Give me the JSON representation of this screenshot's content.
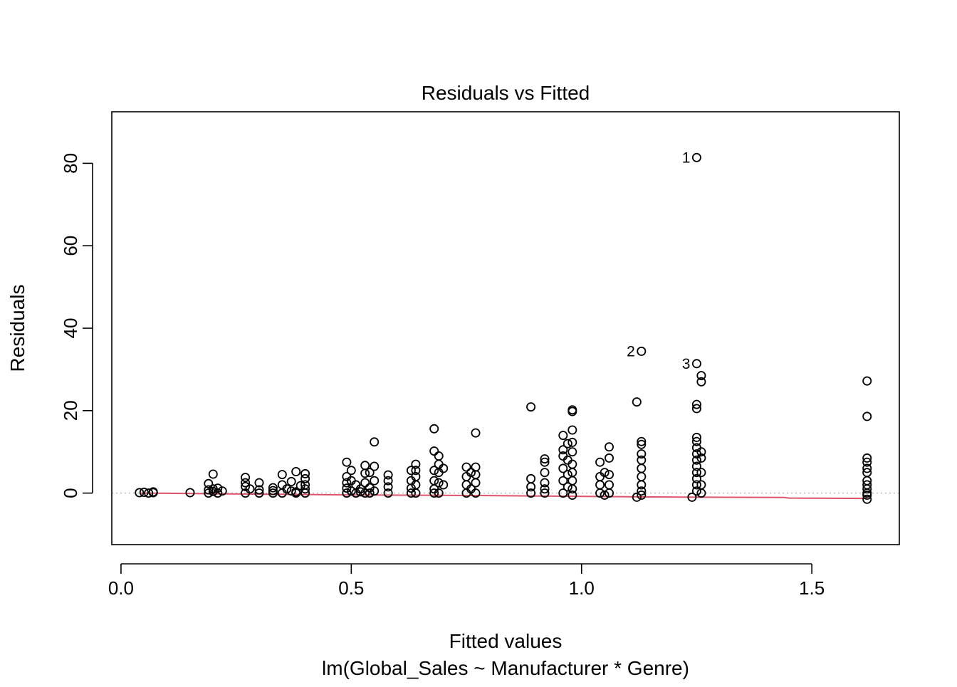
{
  "chart_data": {
    "type": "scatter",
    "title": "Residuals vs Fitted",
    "xlabel": "Fitted values",
    "subtitle": "lm(Global_Sales ~ Manufacturer * Genre)",
    "ylabel": "Residuals",
    "xlim": [
      -0.02,
      1.69
    ],
    "ylim": [
      -12.5,
      92.5
    ],
    "x_ticks": [
      "0.0",
      "0.5",
      "1.0",
      "1.5"
    ],
    "x_tick_values": [
      0.0,
      0.5,
      1.0,
      1.5
    ],
    "y_ticks": [
      "0",
      "20",
      "40",
      "60",
      "80"
    ],
    "y_tick_values": [
      0,
      20,
      40,
      60,
      80
    ],
    "grid": false,
    "zero_reference_line": true,
    "colors": {
      "points": "#000000",
      "smooth_line": "#DF536B",
      "reference_line": "#BEBEBE"
    },
    "annotations": [
      {
        "label": "1",
        "x": 1.25,
        "y": 81.4
      },
      {
        "label": "2",
        "x": 1.13,
        "y": 34.4
      },
      {
        "label": "3",
        "x": 1.25,
        "y": 31.4
      }
    ],
    "series": [
      {
        "points": [
          [
            0.04,
            0.1
          ],
          [
            0.05,
            0.2
          ],
          [
            0.06,
            0.0
          ],
          [
            0.07,
            0.3
          ],
          [
            0.07,
            0.1
          ],
          [
            0.15,
            0.1
          ],
          [
            0.19,
            0.0
          ],
          [
            0.19,
            2.3
          ],
          [
            0.2,
            4.6
          ],
          [
            0.2,
            1.0
          ],
          [
            0.21,
            0.0
          ],
          [
            0.2,
            0.4
          ],
          [
            0.21,
            1.2
          ],
          [
            0.22,
            0.5
          ],
          [
            0.19,
            0.8
          ],
          [
            0.27,
            0.0
          ],
          [
            0.27,
            3.8
          ],
          [
            0.27,
            2.5
          ],
          [
            0.28,
            1.0
          ],
          [
            0.27,
            1.6
          ],
          [
            0.3,
            2.5
          ],
          [
            0.3,
            0.0
          ],
          [
            0.3,
            0.8
          ],
          [
            0.33,
            0.0
          ],
          [
            0.33,
            1.3
          ],
          [
            0.33,
            0.6
          ],
          [
            0.35,
            0.0
          ],
          [
            0.35,
            4.5
          ],
          [
            0.35,
            2.0
          ],
          [
            0.36,
            1.0
          ],
          [
            0.37,
            0.5
          ],
          [
            0.37,
            2.8
          ],
          [
            0.38,
            5.2
          ],
          [
            0.38,
            0.3
          ],
          [
            0.39,
            1.8
          ],
          [
            0.38,
            0.0
          ],
          [
            0.4,
            0.0
          ],
          [
            0.4,
            4.7
          ],
          [
            0.4,
            3.5
          ],
          [
            0.4,
            2.0
          ],
          [
            0.4,
            1.0
          ],
          [
            0.49,
            0.0
          ],
          [
            0.49,
            7.5
          ],
          [
            0.49,
            4.0
          ],
          [
            0.49,
            2.5
          ],
          [
            0.49,
            1.2
          ],
          [
            0.5,
            5.5
          ],
          [
            0.5,
            3.0
          ],
          [
            0.5,
            0.5
          ],
          [
            0.51,
            0.0
          ],
          [
            0.51,
            2.0
          ],
          [
            0.52,
            1.0
          ],
          [
            0.52,
            0.3
          ],
          [
            0.53,
            6.7
          ],
          [
            0.53,
            4.8
          ],
          [
            0.53,
            2.5
          ],
          [
            0.54,
            5.0
          ],
          [
            0.54,
            1.3
          ],
          [
            0.54,
            0.0
          ],
          [
            0.55,
            12.4
          ],
          [
            0.55,
            6.5
          ],
          [
            0.55,
            3.0
          ],
          [
            0.55,
            0.5
          ],
          [
            0.53,
            0.0
          ],
          [
            0.58,
            4.4
          ],
          [
            0.58,
            3.0
          ],
          [
            0.58,
            1.5
          ],
          [
            0.58,
            0.0
          ],
          [
            0.63,
            0.0
          ],
          [
            0.63,
            5.5
          ],
          [
            0.63,
            3.0
          ],
          [
            0.64,
            7.0
          ],
          [
            0.64,
            5.5
          ],
          [
            0.64,
            4.0
          ],
          [
            0.64,
            2.0
          ],
          [
            0.64,
            0.0
          ],
          [
            0.63,
            1.2
          ],
          [
            0.68,
            0.0
          ],
          [
            0.68,
            15.6
          ],
          [
            0.68,
            10.2
          ],
          [
            0.68,
            5.5
          ],
          [
            0.68,
            3.0
          ],
          [
            0.68,
            1.0
          ],
          [
            0.69,
            9.0
          ],
          [
            0.69,
            7.0
          ],
          [
            0.69,
            5.0
          ],
          [
            0.69,
            2.5
          ],
          [
            0.69,
            0.0
          ],
          [
            0.7,
            6.0
          ],
          [
            0.7,
            2.0
          ],
          [
            0.75,
            0.0
          ],
          [
            0.75,
            6.3
          ],
          [
            0.75,
            4.0
          ],
          [
            0.75,
            2.0
          ],
          [
            0.76,
            5.0
          ],
          [
            0.76,
            1.0
          ],
          [
            0.77,
            6.3
          ],
          [
            0.77,
            14.6
          ],
          [
            0.77,
            4.5
          ],
          [
            0.77,
            2.5
          ],
          [
            0.77,
            0.0
          ],
          [
            0.89,
            0.0
          ],
          [
            0.89,
            20.9
          ],
          [
            0.89,
            3.5
          ],
          [
            0.89,
            1.5
          ],
          [
            0.92,
            0.0
          ],
          [
            0.92,
            8.3
          ],
          [
            0.92,
            7.5
          ],
          [
            0.92,
            5.0
          ],
          [
            0.92,
            2.5
          ],
          [
            0.92,
            1.0
          ],
          [
            0.96,
            0.0
          ],
          [
            0.96,
            14.0
          ],
          [
            0.96,
            10.5
          ],
          [
            0.96,
            9.0
          ],
          [
            0.96,
            6.0
          ],
          [
            0.96,
            3.0
          ],
          [
            0.97,
            12.0
          ],
          [
            0.97,
            8.0
          ],
          [
            0.97,
            4.5
          ],
          [
            0.97,
            1.5
          ],
          [
            0.98,
            20.2
          ],
          [
            0.98,
            19.8
          ],
          [
            0.98,
            15.3
          ],
          [
            0.98,
            12.3
          ],
          [
            0.98,
            10.0
          ],
          [
            0.98,
            7.0
          ],
          [
            0.98,
            5.0
          ],
          [
            0.98,
            3.0
          ],
          [
            0.98,
            1.0
          ],
          [
            0.98,
            -0.5
          ],
          [
            1.04,
            0.0
          ],
          [
            1.04,
            7.5
          ],
          [
            1.04,
            4.0
          ],
          [
            1.04,
            2.0
          ],
          [
            1.05,
            5.0
          ],
          [
            1.05,
            -0.5
          ],
          [
            1.06,
            11.2
          ],
          [
            1.06,
            8.5
          ],
          [
            1.06,
            4.5
          ],
          [
            1.06,
            2.0
          ],
          [
            1.06,
            0.0
          ],
          [
            1.12,
            -1.0
          ],
          [
            1.12,
            22.1
          ],
          [
            1.13,
            34.4
          ],
          [
            1.13,
            12.5
          ],
          [
            1.13,
            11.8
          ],
          [
            1.13,
            9.5
          ],
          [
            1.13,
            8.0
          ],
          [
            1.13,
            6.0
          ],
          [
            1.13,
            4.0
          ],
          [
            1.13,
            2.0
          ],
          [
            1.13,
            0.5
          ],
          [
            1.13,
            -0.5
          ],
          [
            1.24,
            -1.0
          ],
          [
            1.25,
            81.4
          ],
          [
            1.25,
            31.4
          ],
          [
            1.25,
            21.5
          ],
          [
            1.25,
            20.5
          ],
          [
            1.25,
            13.5
          ],
          [
            1.25,
            12.5
          ],
          [
            1.25,
            11.0
          ],
          [
            1.25,
            9.5
          ],
          [
            1.25,
            8.0
          ],
          [
            1.25,
            6.5
          ],
          [
            1.25,
            5.0
          ],
          [
            1.25,
            3.5
          ],
          [
            1.25,
            2.0
          ],
          [
            1.25,
            0.5
          ],
          [
            1.26,
            28.5
          ],
          [
            1.26,
            27.0
          ],
          [
            1.26,
            10.0
          ],
          [
            1.26,
            8.5
          ],
          [
            1.26,
            5.0
          ],
          [
            1.26,
            2.0
          ],
          [
            1.26,
            0.0
          ],
          [
            1.62,
            -1.5
          ],
          [
            1.62,
            27.2
          ],
          [
            1.62,
            18.6
          ],
          [
            1.62,
            8.5
          ],
          [
            1.62,
            7.5
          ],
          [
            1.62,
            6.0
          ],
          [
            1.62,
            5.0
          ],
          [
            1.62,
            3.0
          ],
          [
            1.62,
            2.0
          ],
          [
            1.62,
            1.0
          ],
          [
            1.62,
            0.0
          ],
          [
            1.62,
            -0.5
          ]
        ]
      }
    ],
    "smooth_line": [
      [
        0.04,
        0.0
      ],
      [
        0.1,
        -0.05
      ],
      [
        0.2,
        -0.15
      ],
      [
        0.3,
        -0.25
      ],
      [
        0.4,
        -0.35
      ],
      [
        0.5,
        -0.45
      ],
      [
        0.6,
        -0.5
      ],
      [
        0.7,
        -0.55
      ],
      [
        0.8,
        -0.6
      ],
      [
        0.9,
        -0.7
      ],
      [
        1.0,
        -0.8
      ],
      [
        1.1,
        -0.9
      ],
      [
        1.25,
        -1.0
      ],
      [
        1.44,
        -1.05
      ],
      [
        1.45,
        -1.2
      ],
      [
        1.62,
        -1.3
      ]
    ]
  }
}
